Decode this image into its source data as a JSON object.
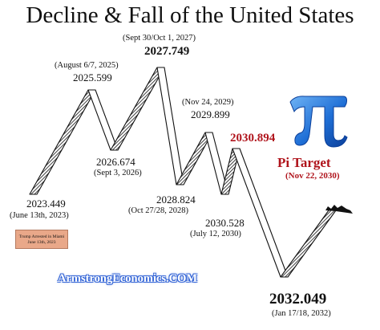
{
  "title": "Decline & Fall of the United States",
  "points": [
    {
      "id": "p1",
      "value": "2023.449",
      "date": "(June 13th, 2023)"
    },
    {
      "id": "p2",
      "value": "2025.599",
      "date": "(August 6/7, 2025)"
    },
    {
      "id": "p3",
      "value": "2026.674",
      "date": "(Sept 3, 2026)"
    },
    {
      "id": "p4",
      "value": "2027.749",
      "date": "(Sept 30/Oct 1, 2027)"
    },
    {
      "id": "p5",
      "value": "2028.824",
      "date": "(Oct 27/28, 2028)"
    },
    {
      "id": "p6",
      "value": "2029.899",
      "date": "(Nov 24, 2029)"
    },
    {
      "id": "p7",
      "value": "2030.528",
      "date": "(July 12, 2030)"
    },
    {
      "id": "p8",
      "value": "2030.894",
      "date": ""
    },
    {
      "id": "p9",
      "value": "2032.049",
      "date": "(Jan 17/18, 2032)"
    }
  ],
  "pi_panel": {
    "symbol": "π",
    "label": "Pi Target",
    "date": "(Nov 22, 2030)"
  },
  "note": {
    "line1": "Trump Arrested in Miami",
    "line2": "June 13th, 2023"
  },
  "brand": "ArmstrongEconomics.COM",
  "colors": {
    "accent_red": "#b0141c",
    "pi_blue": "#1f6fd6",
    "ribbon_dark": "#1a1a1a"
  }
}
